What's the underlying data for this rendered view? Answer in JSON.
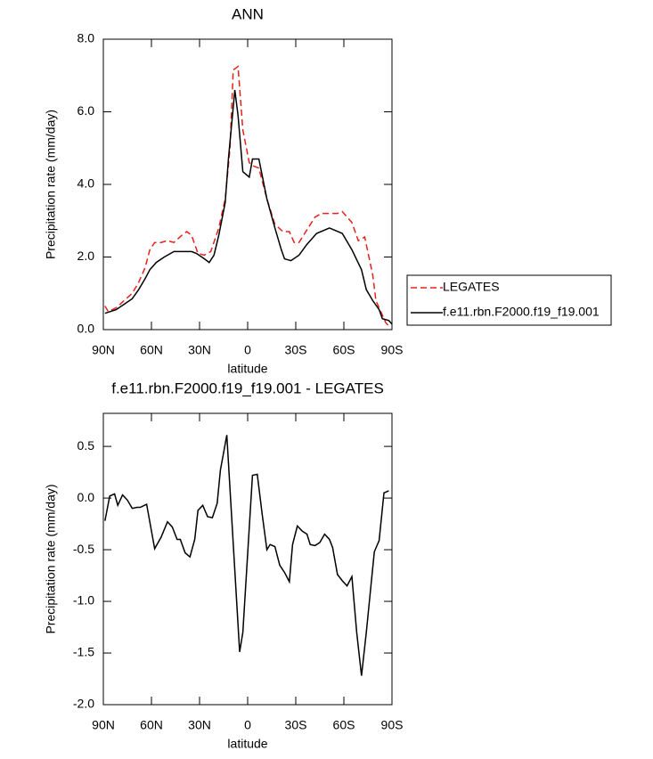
{
  "chart_data": [
    {
      "type": "line",
      "title": "ANN",
      "xlabel": "latitude",
      "ylabel": "Precipitation rate (mm/day)",
      "xlim": [
        90,
        -90
      ],
      "ylim": [
        0,
        8
      ],
      "xticks": [
        {
          "value": 90,
          "label": "90N"
        },
        {
          "value": 60,
          "label": "60N"
        },
        {
          "value": 30,
          "label": "30N"
        },
        0,
        {
          "value": -30,
          "label": "30S"
        },
        {
          "value": -60,
          "label": "60S"
        },
        {
          "value": -90,
          "label": "90S"
        }
      ],
      "yticks": [
        {
          "value": 0,
          "label": "0.0"
        },
        {
          "value": 2,
          "label": "2.0"
        },
        {
          "value": 4,
          "label": "4.0"
        },
        {
          "value": 6,
          "label": "6.0"
        },
        {
          "value": 8,
          "label": "8.0"
        }
      ],
      "legend": "right",
      "series": [
        {
          "name": "LEGATES",
          "color": "#e8201c",
          "dash": true,
          "x": [
            89,
            87,
            82,
            77,
            72,
            68,
            64,
            61,
            58,
            54,
            50,
            46,
            41,
            38,
            35,
            31,
            27,
            23,
            18,
            14,
            11,
            9,
            6,
            3,
            -1,
            -4,
            -7,
            -12,
            -17,
            -22,
            -26,
            -29,
            -32,
            -37,
            -42,
            -46,
            -51,
            -56,
            -59,
            -65,
            -69,
            -73,
            -78,
            -80,
            -82,
            -86,
            -88
          ],
          "values": [
            0.65,
            0.5,
            0.6,
            0.8,
            1.0,
            1.3,
            1.7,
            2.2,
            2.4,
            2.4,
            2.45,
            2.4,
            2.6,
            2.7,
            2.6,
            2.1,
            2.05,
            2.15,
            2.8,
            3.6,
            5.0,
            7.15,
            7.25,
            5.5,
            4.6,
            4.5,
            4.45,
            3.6,
            2.9,
            2.7,
            2.7,
            2.4,
            2.4,
            2.75,
            3.1,
            3.2,
            3.2,
            3.2,
            3.25,
            2.95,
            2.45,
            2.55,
            1.5,
            0.8,
            0.6,
            0.2,
            0.1
          ]
        },
        {
          "name": "f.e11.rbn.F2000.f19_f19.001",
          "color": "#000000",
          "dash": false,
          "x": [
            89,
            82,
            77,
            72,
            68,
            64,
            61,
            57,
            52,
            46,
            41,
            35,
            32,
            27,
            24,
            21,
            18,
            14,
            12,
            8,
            6,
            3,
            -1,
            -3,
            -7,
            -12,
            -17,
            -21,
            -23,
            -27,
            -32,
            -37,
            -43,
            -51,
            -59,
            -65,
            -71,
            -74,
            -78,
            -82,
            -84,
            -88,
            -90
          ],
          "values": [
            0.45,
            0.55,
            0.7,
            0.85,
            1.1,
            1.4,
            1.65,
            1.85,
            2.0,
            2.15,
            2.15,
            2.15,
            2.1,
            1.95,
            1.85,
            2.05,
            2.6,
            3.5,
            4.7,
            6.6,
            5.9,
            4.35,
            4.2,
            4.7,
            4.7,
            3.6,
            2.8,
            2.2,
            1.95,
            1.9,
            2.05,
            2.35,
            2.65,
            2.8,
            2.65,
            2.2,
            1.65,
            1.1,
            0.8,
            0.55,
            0.3,
            0.25,
            0.15
          ]
        }
      ]
    },
    {
      "type": "line",
      "title": "f.e11.rbn.F2000.f19_f19.001 - LEGATES",
      "xlabel": "latitude",
      "ylabel": "Precipitation rate (mm/day)",
      "xlim": [
        90,
        -90
      ],
      "ylim": [
        -2.0,
        0.82
      ],
      "xticks": [
        {
          "value": 90,
          "label": "90N"
        },
        {
          "value": 60,
          "label": "60N"
        },
        {
          "value": 30,
          "label": "30N"
        },
        0,
        {
          "value": -30,
          "label": "30S"
        },
        {
          "value": -60,
          "label": "60S"
        },
        {
          "value": -90,
          "label": "90S"
        }
      ],
      "yticks": [
        {
          "value": -2,
          "label": "-2.0"
        },
        -1.5,
        {
          "value": -1,
          "label": "-1.0"
        },
        -0.5,
        {
          "value": 0,
          "label": "0.0"
        },
        0.5
      ],
      "series": [
        {
          "color": "#000000",
          "dash": false,
          "x": [
            89,
            86,
            83,
            81,
            78,
            75,
            72,
            69,
            67,
            63,
            58,
            54,
            50,
            47,
            44,
            42,
            39,
            36,
            33,
            31,
            28,
            25,
            22,
            19,
            17,
            13,
            5,
            3,
            -3,
            -6,
            -9,
            -12,
            -14,
            -17,
            -20,
            -23,
            -26,
            -28,
            -31,
            -34,
            -37,
            -39,
            -42,
            -45,
            -48,
            -51,
            -53,
            -56,
            -59,
            -62,
            -65,
            -68,
            -71,
            -74,
            -77,
            -79,
            -82,
            -85,
            -88
          ],
          "values": [
            -0.22,
            0.02,
            0.04,
            -0.07,
            0.03,
            -0.02,
            -0.1,
            -0.09,
            -0.09,
            -0.06,
            -0.49,
            -0.38,
            -0.23,
            -0.28,
            -0.4,
            -0.4,
            -0.53,
            -0.57,
            -0.4,
            -0.12,
            -0.07,
            -0.18,
            -0.19,
            -0.05,
            0.27,
            0.61,
            -1.49,
            -1.3,
            0.22,
            0.23,
            -0.15,
            -0.5,
            -0.45,
            -0.47,
            -0.65,
            -0.72,
            -0.81,
            -0.45,
            -0.27,
            -0.32,
            -0.35,
            -0.45,
            -0.46,
            -0.43,
            -0.35,
            -0.4,
            -0.48,
            -0.74,
            -0.8,
            -0.85,
            -0.76,
            -1.3,
            -1.72,
            -1.3,
            -0.83,
            -0.52,
            -0.41,
            0.05,
            0.07
          ]
        }
      ]
    }
  ]
}
